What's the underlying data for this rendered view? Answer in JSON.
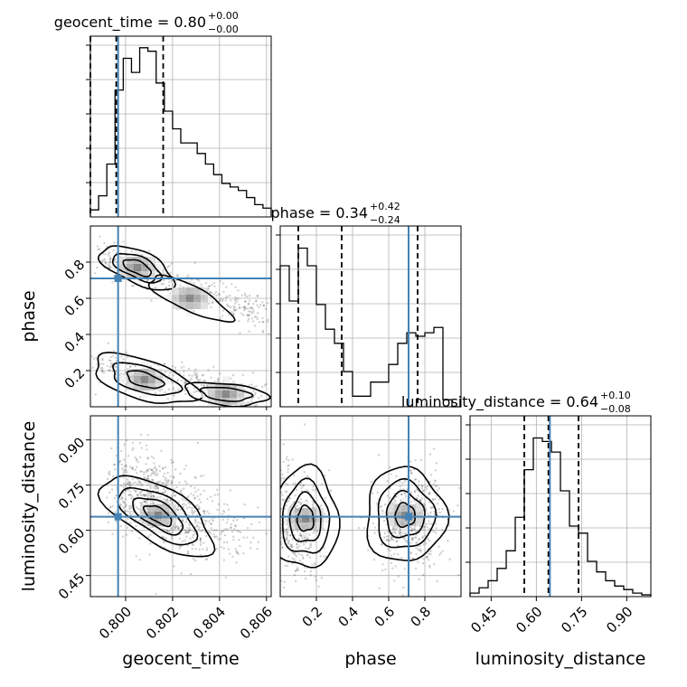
{
  "chart_data": {
    "type": "corner",
    "parameters": [
      {
        "name": "geocent_time",
        "xlabel": "geocent_time",
        "ylabel": "",
        "range": [
          0.7985,
          0.8062
        ],
        "ticks": [
          0.8,
          0.802,
          0.804,
          0.806
        ],
        "tick_labels": [
          "0.800",
          "0.802",
          "0.804",
          "0.806"
        ],
        "title": {
          "label": "geocent_time",
          "median": "0.80",
          "upper": "+0.00",
          "lower": "−0.00"
        },
        "quantile_lines": [
          0.7985,
          0.7996,
          0.8016
        ],
        "truth": 0.79968,
        "histogram": [
          0.04,
          0.12,
          0.3,
          0.72,
          0.9,
          0.82,
          0.96,
          0.94,
          0.76,
          0.6,
          0.5,
          0.42,
          0.42,
          0.36,
          0.3,
          0.24,
          0.19,
          0.17,
          0.15,
          0.11,
          0.07,
          0.05
        ]
      },
      {
        "name": "phase",
        "xlabel": "phase",
        "ylabel": "phase",
        "range": [
          0.0,
          1.0
        ],
        "ticks": [
          0.2,
          0.4,
          0.6,
          0.8
        ],
        "tick_labels": [
          "0.2",
          "0.4",
          "0.6",
          "0.8"
        ],
        "title": {
          "label": "phase",
          "median": "0.34",
          "upper": "+0.42",
          "lower": "−0.24"
        },
        "quantile_lines": [
          0.1,
          0.34,
          0.76
        ],
        "truth": 0.71,
        "histogram": [
          0.8,
          0.6,
          0.9,
          0.8,
          0.58,
          0.44,
          0.36,
          0.2,
          0.06,
          0.06,
          0.14,
          0.14,
          0.24,
          0.36,
          0.42,
          0.4,
          0.42,
          0.45,
          0.04,
          0.0
        ]
      },
      {
        "name": "luminosity_distance",
        "xlabel": "luminosity_distance",
        "ylabel": "luminosity_distance",
        "range": [
          0.38,
          0.98
        ],
        "ticks": [
          0.45,
          0.6,
          0.75,
          0.9
        ],
        "tick_labels": [
          "0.45",
          "0.60",
          "0.75",
          "0.90"
        ],
        "title": {
          "label": "luminosity_distance",
          "median": "0.64",
          "upper": "+0.10",
          "lower": "−0.08"
        },
        "quantile_lines": [
          0.56,
          0.64,
          0.74
        ],
        "truth": 0.645,
        "histogram": [
          0.02,
          0.05,
          0.09,
          0.16,
          0.26,
          0.45,
          0.72,
          0.9,
          0.88,
          0.82,
          0.6,
          0.4,
          0.36,
          0.2,
          0.14,
          0.09,
          0.06,
          0.04,
          0.02,
          0.01
        ]
      }
    ],
    "truths": {
      "geocent_time": 0.79968,
      "phase": 0.71,
      "luminosity_distance": 0.645
    },
    "truth_color": "#4682b4",
    "line_color": "#000000",
    "grid": true
  }
}
